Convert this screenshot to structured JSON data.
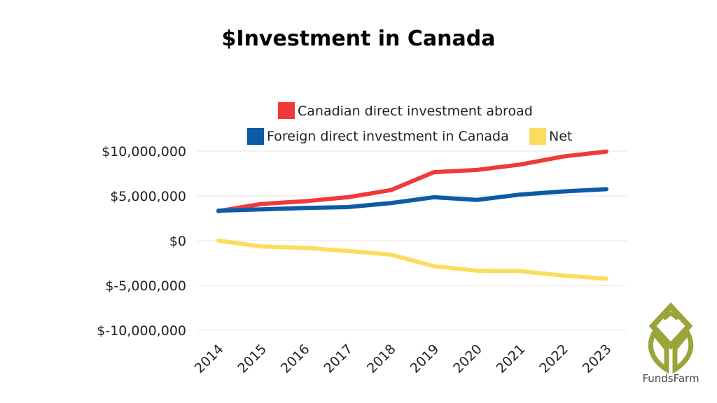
{
  "chart_data": {
    "type": "line",
    "title": "$Investment in Canada",
    "xlabel": "",
    "ylabel": "",
    "categories": [
      "2014",
      "2015",
      "2016",
      "2017",
      "2018",
      "2019",
      "2020",
      "2021",
      "2022",
      "2023"
    ],
    "ylim": [
      -10000000,
      10000000
    ],
    "yticks": [
      10000000,
      5000000,
      0,
      -5000000,
      -10000000
    ],
    "ytick_labels": [
      "$10,000,000",
      "$5,000,000",
      "$0",
      "$-5,000,000",
      "$-10,000,000"
    ],
    "grid": true,
    "legend_position": "top",
    "series": [
      {
        "name": "Canadian direct investment abroad",
        "color": "#f03a3a",
        "values": [
          3300000,
          4100000,
          4400000,
          4850000,
          5650000,
          7650000,
          7900000,
          8500000,
          9400000,
          9950000
        ]
      },
      {
        "name": "Foreign direct investment in Canada",
        "color": "#0d5aa7",
        "values": [
          3350000,
          3500000,
          3650000,
          3750000,
          4200000,
          4850000,
          4550000,
          5150000,
          5500000,
          5750000
        ]
      },
      {
        "name": "Net",
        "color": "#fbdd5e",
        "values": [
          0,
          -650000,
          -800000,
          -1150000,
          -1550000,
          -2850000,
          -3350000,
          -3400000,
          -3900000,
          -4250000
        ]
      }
    ]
  },
  "brand": {
    "name": "FundsFarm",
    "logo_color": "#9aa43a",
    "icon": "leaf-logo-icon"
  }
}
